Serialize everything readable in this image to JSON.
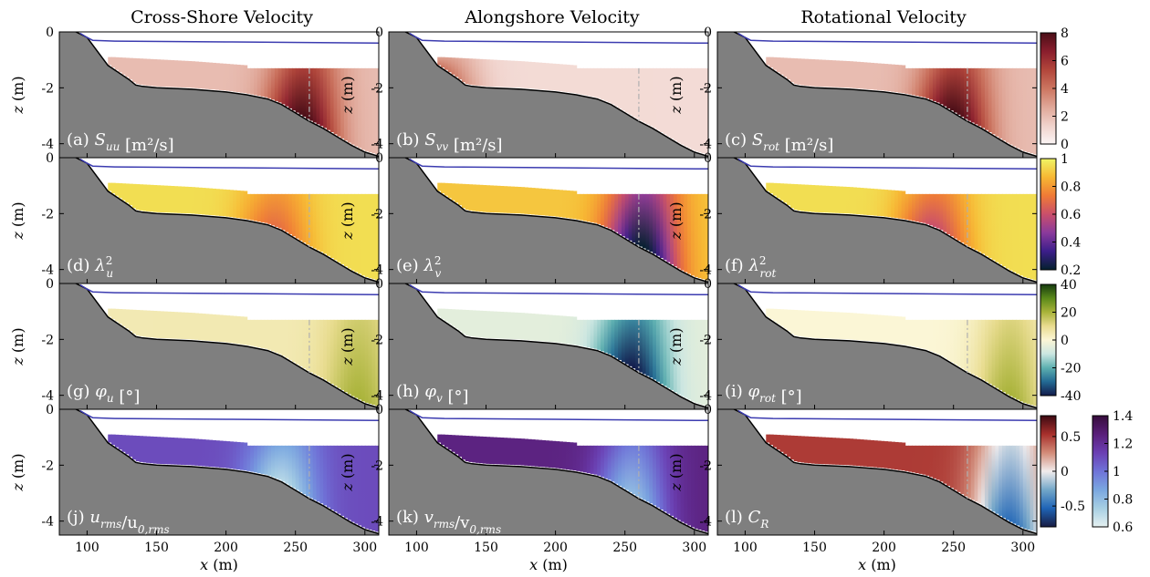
{
  "column_titles": [
    "Cross-Shore Velocity",
    "Alongshore Velocity",
    "Rotational Velocity"
  ],
  "axis": {
    "y_label": "z (m)",
    "x_label": "x (m)",
    "y_ticks": [
      "0",
      "-2",
      "-4"
    ],
    "x_ticks": [
      "100",
      "150",
      "200",
      "250",
      "300"
    ]
  },
  "colors": {
    "bathymetry": "#7f7f7f",
    "surface_line": "#3b3bb0",
    "sensor_line": "#b0b0b0"
  },
  "chart_data": {
    "type": "heatmap",
    "layout": "4 rows x 3 columns of cross-shore sections",
    "xlim": [
      80,
      310
    ],
    "ylim": [
      -4.5,
      0
    ],
    "x_ticks": [
      100,
      150,
      200,
      250,
      300
    ],
    "y_ticks": [
      0,
      -2,
      -4
    ],
    "grid": false,
    "sensor_line_x": 260,
    "bathymetry_profile": {
      "x": [
        80,
        100,
        115,
        130,
        135,
        140,
        150,
        175,
        200,
        215,
        230,
        240,
        250,
        260,
        270,
        280,
        290,
        300,
        310
      ],
      "z": [
        0.3,
        -0.2,
        -1.2,
        -1.7,
        -1.9,
        -1.95,
        -2.0,
        -2.05,
        -2.15,
        -2.25,
        -2.4,
        -2.6,
        -2.9,
        -3.2,
        -3.45,
        -3.75,
        -4.05,
        -4.3,
        -4.45
      ]
    },
    "panels": [
      {
        "id": "a",
        "label": "(a) ",
        "symbol": "S",
        "sub": "uu",
        "sup": "",
        "suffix": " [m²/s]",
        "colormap": "reds",
        "clim": [
          0,
          8
        ],
        "hotspot_x": 255,
        "hotspot_value": 8,
        "background_value": 2
      },
      {
        "id": "b",
        "label": "(b) ",
        "symbol": "S",
        "sub": "vv",
        "sup": "",
        "suffix": " [m²/s]",
        "colormap": "reds",
        "clim": [
          0,
          8
        ],
        "hotspot_x": 120,
        "hotspot_value": 4,
        "background_value": 1
      },
      {
        "id": "c",
        "label": "(c) ",
        "symbol": "S",
        "sub": "rot",
        "sup": "",
        "suffix": " [m²/s]",
        "colormap": "reds",
        "clim": [
          0,
          8
        ],
        "hotspot_x": 250,
        "hotspot_value": 8,
        "background_value": 2
      },
      {
        "id": "d",
        "label": "(d) ",
        "symbol": "λ",
        "sub": "u",
        "sup": "2",
        "suffix": "",
        "colormap": "thermal",
        "clim": [
          0.2,
          1
        ],
        "hotspot_x": 235,
        "hotspot_value": 0.7,
        "background_value": 0.95
      },
      {
        "id": "e",
        "label": "(e) ",
        "symbol": "λ",
        "sub": "v",
        "sup": "2",
        "suffix": "",
        "colormap": "thermal",
        "clim": [
          0.2,
          1
        ],
        "hotspot_x": 262,
        "hotspot_value": 0.2,
        "background_value": 0.9
      },
      {
        "id": "f",
        "label": "(f) ",
        "symbol": "λ",
        "sub": "rot",
        "sup": "2",
        "suffix": "",
        "colormap": "thermal",
        "clim": [
          0.2,
          1
        ],
        "hotspot_x": 235,
        "hotspot_value": 0.6,
        "background_value": 0.95
      },
      {
        "id": "g",
        "label": "(g) ",
        "symbol": "φ",
        "sub": "u",
        "sup": "",
        "suffix": " [°]",
        "colormap": "diverging_teal_green",
        "clim": [
          -40,
          40
        ],
        "hotspot_x": 295,
        "hotspot_value": 20,
        "background_value": 5
      },
      {
        "id": "h",
        "label": "(h) ",
        "symbol": "φ",
        "sub": "v",
        "sup": "",
        "suffix": " [°]",
        "colormap": "diverging_teal_green",
        "clim": [
          -40,
          40
        ],
        "hotspot_x": 255,
        "hotspot_value": -40,
        "background_value": -5
      },
      {
        "id": "i",
        "label": "(i) ",
        "symbol": "φ",
        "sub": "rot",
        "sup": "",
        "suffix": " [°]",
        "colormap": "diverging_teal_green",
        "clim": [
          -40,
          40
        ],
        "hotspot_x": 290,
        "hotspot_value": 20,
        "background_value": 0
      },
      {
        "id": "j",
        "label": "(j) ",
        "symbol": "u",
        "sub": "rms",
        "sup": "",
        "suffix": "/u",
        "suffix_sub": "0,rms",
        "colormap": "dense",
        "clim": [
          0.6,
          1.4
        ],
        "hotspot_x": 240,
        "hotspot_value": 0.7,
        "background_value": 1.1
      },
      {
        "id": "k",
        "label": "(k) ",
        "symbol": "v",
        "sub": "rms",
        "sup": "",
        "suffix": "/v",
        "suffix_sub": "0,rms",
        "colormap": "dense",
        "clim": [
          0.6,
          1.4
        ],
        "hotspot_x": 255,
        "hotspot_value": 0.8,
        "background_value": 1.25
      },
      {
        "id": "l",
        "label": "(l) ",
        "symbol": "C",
        "sub": "R",
        "sup": "",
        "suffix": "",
        "colormap": "balance",
        "clim": [
          -0.8,
          0.8
        ],
        "hotspot_x": 290,
        "hotspot_value": -0.5,
        "background_value": 0.5
      }
    ],
    "colorbars": [
      {
        "row": 0,
        "colormap": "reds",
        "ticks": [
          "0",
          "2",
          "4",
          "6",
          "8"
        ],
        "values": [
          0,
          2,
          4,
          6,
          8
        ]
      },
      {
        "row": 1,
        "colormap": "thermal",
        "ticks": [
          "0.2",
          "0.4",
          "0.6",
          "0.8",
          "1"
        ],
        "values": [
          0.2,
          0.4,
          0.6,
          0.8,
          1
        ]
      },
      {
        "row": 2,
        "colormap": "diverging_teal_green",
        "ticks": [
          "-40",
          "-20",
          "0",
          "20",
          "40"
        ],
        "values": [
          -40,
          -20,
          0,
          20,
          40
        ]
      },
      {
        "row": 3,
        "colormap": "balance",
        "ticks": [
          "-0.5",
          "0",
          "0.5"
        ],
        "values": [
          -0.5,
          0,
          0.5
        ]
      },
      {
        "row": 3,
        "colormap": "dense",
        "ticks": [
          "0.6",
          "0.8",
          "1",
          "1.2",
          "1.4"
        ],
        "values": [
          0.6,
          0.8,
          1,
          1.2,
          1.4
        ]
      }
    ]
  }
}
